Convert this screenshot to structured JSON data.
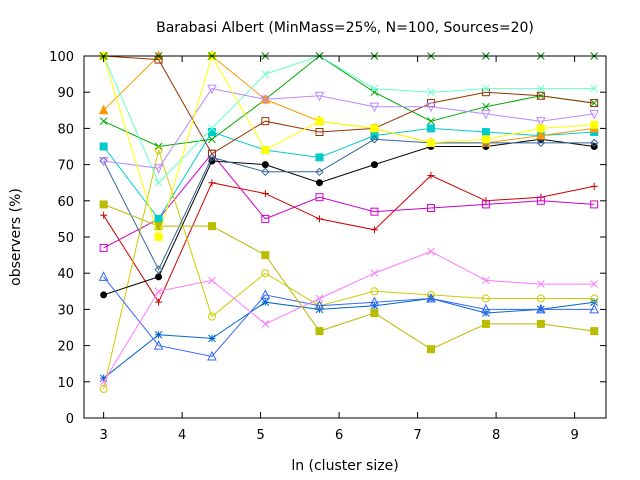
{
  "chart_data": {
    "type": "line",
    "title": "Barabasi Albert (MinMass=25%, N=100, Sources=20)",
    "xlabel": "ln (cluster size)",
    "ylabel": "observers (%)",
    "xlim": [
      2.75,
      9.4
    ],
    "ylim": [
      0,
      100
    ],
    "xticks": [
      3,
      4,
      5,
      6,
      7,
      8,
      9
    ],
    "yticks": [
      0,
      10,
      20,
      30,
      40,
      50,
      60,
      70,
      80,
      90,
      100
    ],
    "grid": false,
    "legend": "none",
    "series": [
      {
        "color": "#cc0000",
        "marker": "plus",
        "x": [
          3.0,
          3.7,
          4.38,
          5.06,
          5.75,
          6.45,
          7.17,
          7.87,
          8.57,
          9.25
        ],
        "y": [
          56,
          32,
          65,
          62,
          55,
          52,
          67,
          60,
          61,
          64
        ]
      },
      {
        "color": "#00aa00",
        "marker": "cross",
        "x": [
          3.0,
          3.7,
          4.38,
          5.06,
          5.75,
          6.45,
          7.17,
          7.87,
          8.57,
          9.25
        ],
        "y": [
          82,
          75,
          77,
          88,
          100,
          90,
          82,
          86,
          89,
          87
        ]
      },
      {
        "color": "#0066cc",
        "marker": "star",
        "x": [
          3.0,
          3.7,
          4.38,
          5.06,
          5.75,
          6.45,
          7.17,
          7.87,
          8.57,
          9.25
        ],
        "y": [
          11,
          23,
          22,
          32,
          30,
          31,
          33,
          29,
          30,
          32
        ]
      },
      {
        "color": "#cc00cc",
        "marker": "open-square",
        "x": [
          3.0,
          3.7,
          4.38,
          5.06,
          5.75,
          6.45,
          7.17,
          7.87,
          8.57,
          9.25
        ],
        "y": [
          47,
          55,
          73,
          55,
          61,
          57,
          58,
          59,
          60,
          59
        ]
      },
      {
        "color": "#00cccc",
        "marker": "filled-square",
        "x": [
          3.0,
          3.7,
          4.38,
          5.06,
          5.75,
          6.45,
          7.17,
          7.87,
          8.57,
          9.25
        ],
        "y": [
          75,
          55,
          79,
          74,
          72,
          78,
          80,
          79,
          78,
          79
        ]
      },
      {
        "color": "#cccc00",
        "marker": "open-circle",
        "x": [
          3.0,
          3.7,
          4.38,
          5.06,
          5.75,
          6.45,
          7.17,
          7.87,
          8.57,
          9.25
        ],
        "y": [
          8,
          74,
          28,
          40,
          31,
          35,
          34,
          33,
          33,
          33
        ]
      },
      {
        "color": "#000000",
        "marker": "filled-circle",
        "x": [
          3.0,
          3.7,
          4.38,
          5.06,
          5.75,
          6.45,
          7.17,
          7.87,
          8.57,
          9.25
        ],
        "y": [
          34,
          39,
          71,
          70,
          65,
          70,
          75,
          75,
          77,
          75
        ]
      },
      {
        "color": "#ff9900",
        "marker": "filled-triangle",
        "x": [
          3.0,
          3.7,
          4.38,
          5.06,
          5.75,
          6.45,
          7.17,
          7.87,
          8.57,
          9.25
        ],
        "y": [
          85,
          100,
          100,
          88,
          82,
          80,
          76,
          76,
          78,
          80
        ]
      },
      {
        "color": "#3366ff",
        "marker": "open-triangle",
        "x": [
          3.0,
          3.7,
          4.38,
          5.06,
          5.75,
          6.45,
          7.17,
          7.87,
          8.57,
          9.25
        ],
        "y": [
          39,
          20,
          17,
          34,
          31,
          32,
          33,
          30,
          30,
          30
        ]
      },
      {
        "color": "#993300",
        "marker": "open-square",
        "x": [
          3.0,
          3.7,
          4.38,
          5.06,
          5.75,
          6.45,
          7.17,
          7.87,
          8.57,
          9.25
        ],
        "y": [
          100,
          99,
          73,
          82,
          79,
          80,
          87,
          90,
          89,
          87
        ]
      },
      {
        "color": "#ff77ff",
        "marker": "cross",
        "x": [
          3.0,
          3.7,
          4.38,
          5.06,
          5.75,
          6.45,
          7.17,
          7.87,
          8.57,
          9.25
        ],
        "y": [
          10,
          35,
          38,
          26,
          33,
          40,
          46,
          38,
          37,
          37
        ]
      },
      {
        "color": "#66ffcc",
        "marker": "cross",
        "x": [
          3.0,
          3.7,
          4.38,
          5.06,
          5.75,
          6.45,
          7.17,
          7.87,
          8.57,
          9.25
        ],
        "y": [
          100,
          65,
          80,
          95,
          100,
          91,
          90,
          91,
          91,
          91
        ]
      },
      {
        "color": "#336699",
        "marker": "open-diamond",
        "x": [
          3.0,
          3.7,
          4.38,
          5.06,
          5.75,
          6.45,
          7.17,
          7.87,
          8.57,
          9.25
        ],
        "y": [
          71,
          41,
          72,
          68,
          68,
          77,
          76,
          76,
          76,
          76
        ]
      },
      {
        "color": "#bb88ff",
        "marker": "open-triangle-down",
        "x": [
          3.0,
          3.7,
          4.38,
          5.06,
          5.75,
          6.45,
          7.17,
          7.87,
          8.57,
          9.25
        ],
        "y": [
          71,
          69,
          91,
          88,
          89,
          86,
          86,
          84,
          82,
          84
        ]
      },
      {
        "color": "#bbbb00",
        "marker": "filled-square",
        "x": [
          3.0,
          3.7,
          4.38,
          5.06,
          5.75,
          6.45,
          7.17,
          7.87,
          8.57,
          9.25
        ],
        "y": [
          59,
          53,
          53,
          45,
          24,
          29,
          19,
          26,
          26,
          24
        ]
      },
      {
        "color": "#ffff00",
        "marker": "filled-square",
        "x": [
          3.0,
          3.7,
          4.38,
          5.06,
          5.75,
          6.45,
          7.17,
          7.87,
          8.57,
          9.25
        ],
        "y": [
          100,
          50,
          100,
          74,
          82,
          80,
          76,
          77,
          80,
          81
        ]
      },
      {
        "color": "#007700",
        "marker": "cross",
        "x": [
          3.0,
          3.7,
          4.38,
          5.06,
          5.75,
          6.45,
          7.17,
          7.87,
          8.57,
          9.25
        ],
        "y": [
          100,
          100,
          100,
          100,
          100,
          100,
          100,
          100,
          100,
          100
        ]
      }
    ]
  }
}
